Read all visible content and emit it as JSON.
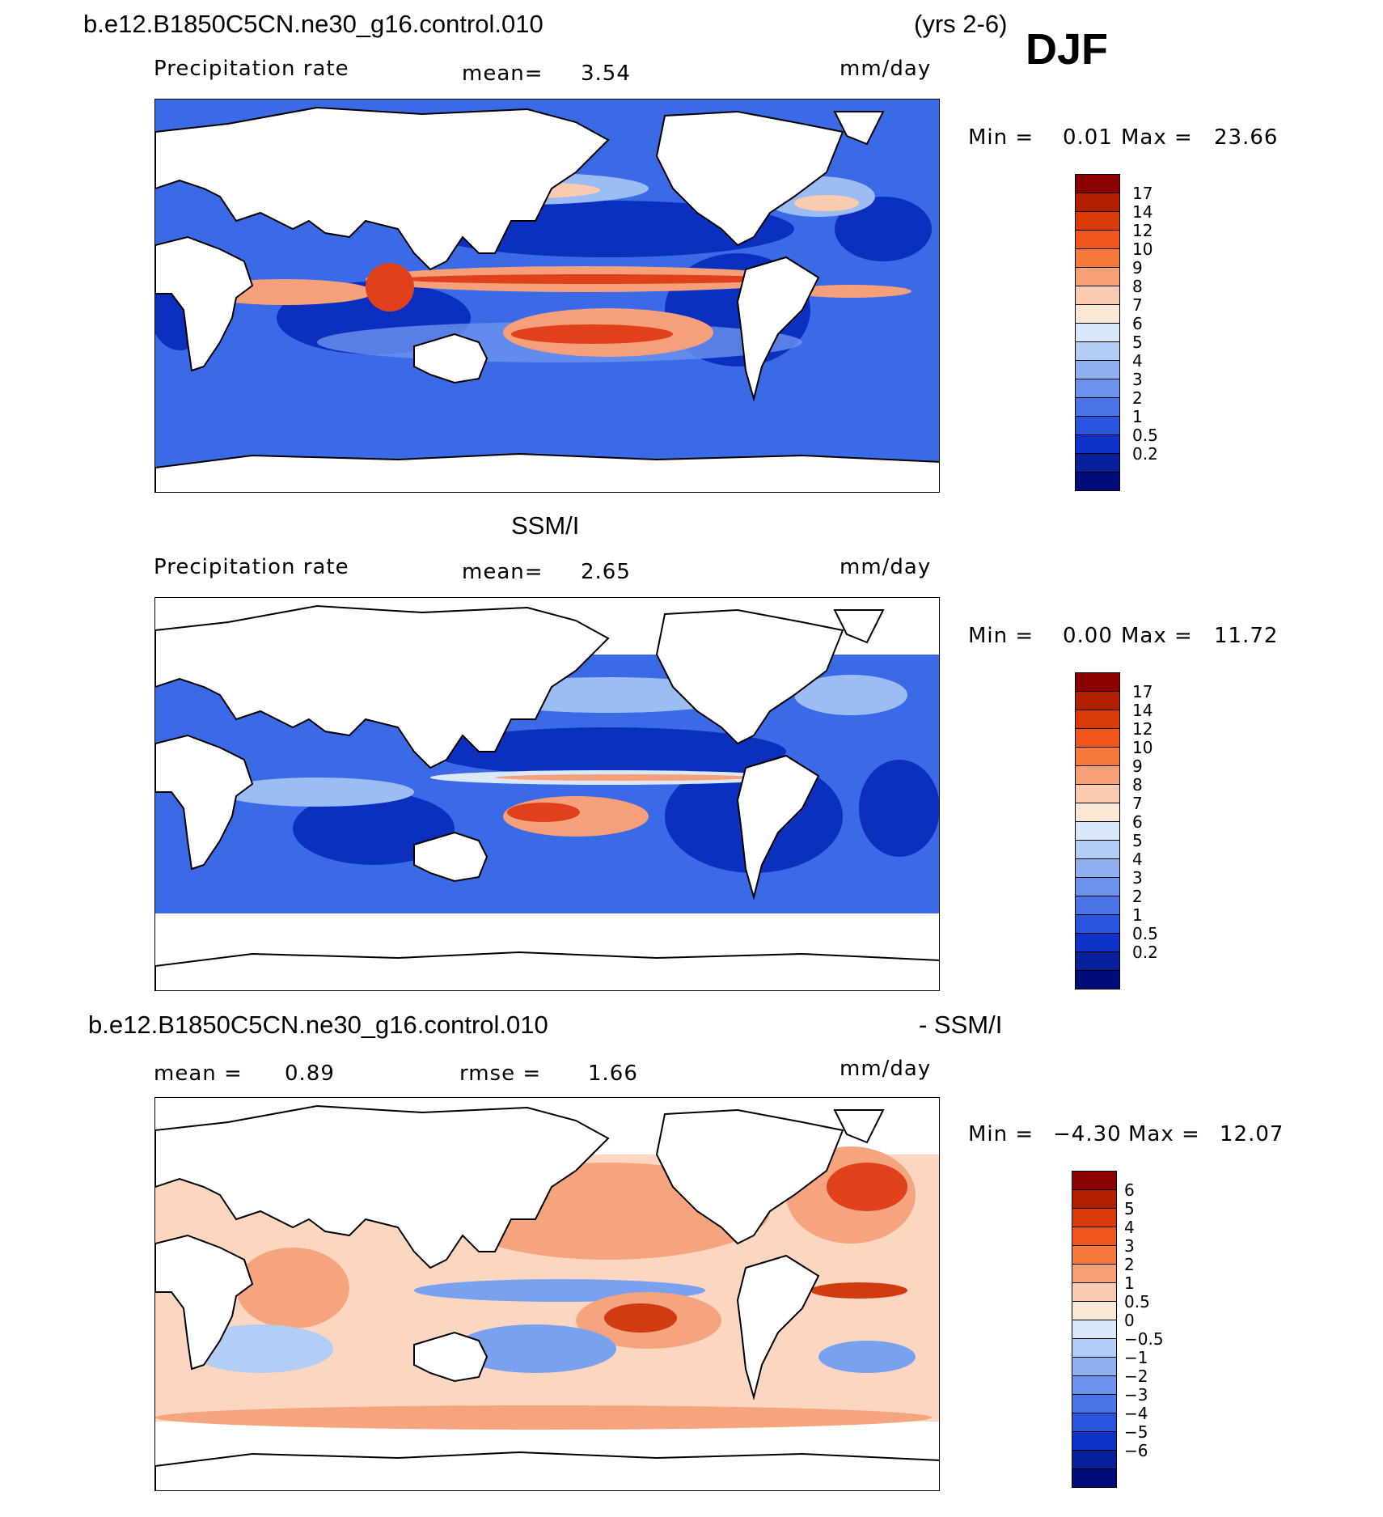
{
  "header": {
    "case_name": "b.e12.B1850C5CN.ne30_g16.control.010",
    "years": "(yrs 2-6)",
    "season": "DJF"
  },
  "panels": [
    {
      "id": "model",
      "title": "",
      "field_label": "Precipitation rate",
      "mean_label": "mean=",
      "mean_value": "3.54",
      "units": "mm/day",
      "min_label": "Min =",
      "min_value": "0.01",
      "max_label": "Max =",
      "max_value": "23.66"
    },
    {
      "id": "obs",
      "title": "SSM/I",
      "field_label": "Precipitation rate",
      "mean_label": "mean=",
      "mean_value": "2.65",
      "units": "mm/day",
      "min_label": "Min =",
      "min_value": "0.00",
      "max_label": "Max =",
      "max_value": "11.72"
    },
    {
      "id": "diff",
      "title_left": "b.e12.B1850C5CN.ne30_g16.control.010",
      "title_right": "- SSM/I",
      "mean_label": "mean =",
      "mean_value": "0.89",
      "rmse_label": "rmse =",
      "rmse_value": "1.66",
      "units": "mm/day",
      "min_label": "Min =",
      "min_value": "−4.30",
      "max_label": "Max =",
      "max_value": "12.07"
    }
  ],
  "colorbars": {
    "precip": {
      "colors": [
        "#8b0000",
        "#b22000",
        "#d93a0a",
        "#f0561e",
        "#f5793c",
        "#f7a078",
        "#fbcbb0",
        "#fde8d6",
        "#d9e8fb",
        "#b3cdf7",
        "#8fb1f2",
        "#6c93ee",
        "#4a74e8",
        "#2a54de",
        "#0f33c8",
        "#06209c",
        "#000c78"
      ],
      "ticks": [
        "17",
        "14",
        "12",
        "10",
        "9",
        "8",
        "7",
        "6",
        "5",
        "4",
        "3",
        "2",
        "1",
        "0.5",
        "0.2"
      ]
    },
    "diff": {
      "colors": [
        "#8b0000",
        "#b22000",
        "#d93a0a",
        "#f0561e",
        "#f5793c",
        "#f7a078",
        "#fbcbb0",
        "#fde8d6",
        "#d9e8fb",
        "#b3cdf7",
        "#8fb1f2",
        "#6c93ee",
        "#4a74e8",
        "#2a54de",
        "#0f33c8",
        "#06209c",
        "#000c78"
      ],
      "ticks": [
        "6",
        "5",
        "4",
        "3",
        "2",
        "1",
        "0.5",
        "0",
        "−0.5",
        "−1",
        "−2",
        "−3",
        "−4",
        "−5",
        "−6"
      ]
    }
  },
  "legend_marks": {
    "fill_colors": {
      "ocean_deep": "#0b2fbf",
      "ocean_mid": "#3a6ae6",
      "ocean_light": "#9cbdf4",
      "itcz_warm": "#f5a07a",
      "itcz_hot": "#e0401a",
      "diff_pos": "#f6a47e",
      "diff_hot": "#d23a10",
      "diff_light": "#fcd6c0",
      "diff_neg": "#7aa0f0",
      "land": "#ffffff"
    }
  }
}
